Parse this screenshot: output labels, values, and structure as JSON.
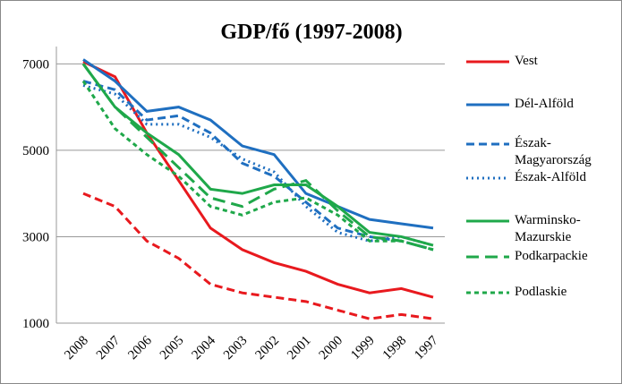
{
  "chart_data": {
    "type": "line",
    "title": "GDP/fő (1997-2008)",
    "categories": [
      "2008",
      "2007",
      "2006",
      "2005",
      "2004",
      "2003",
      "2002",
      "2001",
      "2000",
      "1999",
      "1998",
      "1997"
    ],
    "ylim": [
      1000,
      7400
    ],
    "yticks": [
      1000,
      3000,
      5000,
      7000
    ],
    "grid": true,
    "series": [
      {
        "name": "Vest",
        "color": "#e8191e",
        "dash": "solid",
        "values": [
          7050,
          6700,
          5400,
          4300,
          3200,
          2700,
          2400,
          2200,
          1900,
          1700,
          1800,
          1600
        ]
      },
      {
        "color": "#e8191e",
        "dash": "dashed",
        "values": [
          4000,
          3700,
          2900,
          2500,
          1900,
          1700,
          1600,
          1500,
          1300,
          1100,
          1200,
          1100
        ]
      },
      {
        "name": "Dél-Alföld",
        "color": "#1f6fc0",
        "dash": "solid",
        "values": [
          7100,
          6600,
          5900,
          6000,
          5700,
          5100,
          4900,
          4000,
          3700,
          3400,
          3300,
          3200
        ]
      },
      {
        "name": "Észak-Magyarország",
        "color": "#1f6fc0",
        "dash": "dashed",
        "values": [
          6600,
          6400,
          5700,
          5800,
          5400,
          4700,
          4400,
          3800,
          3200,
          3000,
          2900,
          2700
        ]
      },
      {
        "name": "Észak-Alföld",
        "color": "#1f6fc0",
        "dash": "dotted",
        "values": [
          6500,
          6300,
          5600,
          5600,
          5300,
          4800,
          4500,
          3700,
          3100,
          2900,
          3000,
          2800
        ]
      },
      {
        "name": "Warminsko-Mazurskie",
        "color": "#1fa84a",
        "dash": "solid",
        "values": [
          7000,
          6000,
          5400,
          4900,
          4100,
          4000,
          4200,
          4200,
          3700,
          3100,
          3000,
          2800
        ]
      },
      {
        "name": "Podkarpackie",
        "color": "#1fa84a",
        "dash": "longdash",
        "values": [
          7000,
          6000,
          5300,
          4600,
          3900,
          3700,
          4100,
          4300,
          3600,
          3000,
          2900,
          2700
        ]
      },
      {
        "name": "Podlaskie",
        "color": "#1fa84a",
        "dash": "shortdash",
        "values": [
          6600,
          5500,
          4900,
          4400,
          3700,
          3500,
          3800,
          3900,
          3500,
          2900,
          2900,
          2700
        ]
      }
    ]
  }
}
